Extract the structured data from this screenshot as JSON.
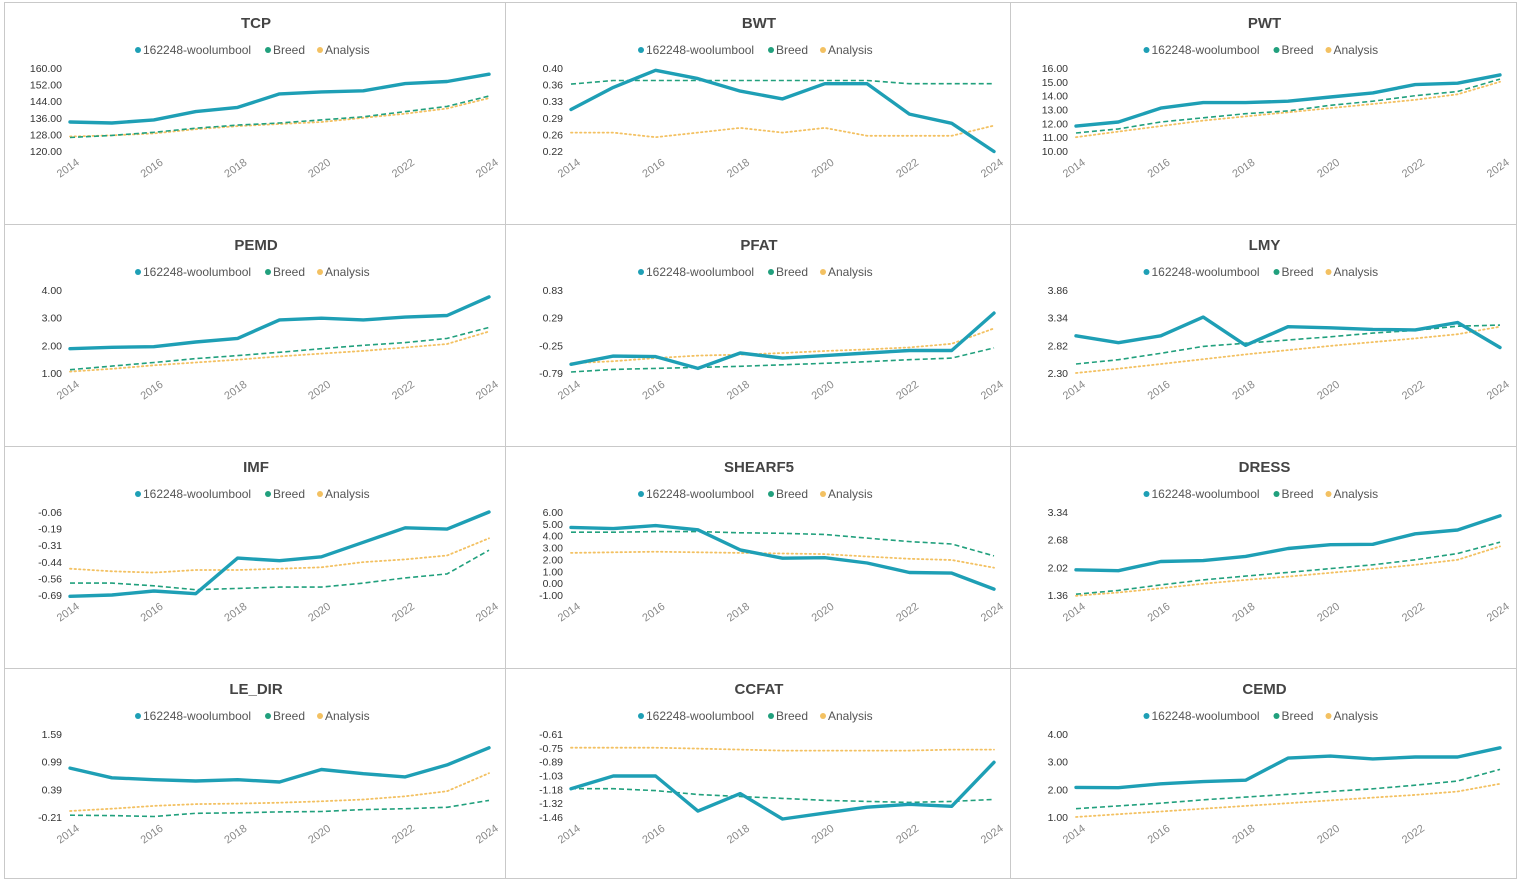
{
  "colors": {
    "animal": "#1e9fb5",
    "breed": "#21a07d",
    "analysis": "#f3c162",
    "border": "#c9c9c9"
  },
  "legend": {
    "animal": "162248-woolumbool",
    "breed": "Breed",
    "analysis": "Analysis"
  },
  "chart_data": [
    {
      "type": "line",
      "title": "TCP",
      "x": [
        2014,
        2015,
        2016,
        2017,
        2018,
        2019,
        2020,
        2021,
        2022,
        2023,
        2024
      ],
      "x_tick_labels": [
        "2014",
        "2016",
        "2018",
        "2020",
        "2022",
        "2024"
      ],
      "y_tick_labels": [
        "160.00",
        "152.00",
        "144.00",
        "136.00",
        "128.00",
        "120.00"
      ],
      "ylim": [
        120,
        160
      ],
      "series": [
        {
          "name": "162248-woolumbool",
          "style": "solid",
          "values": [
            134,
            133.5,
            135,
            139,
            141,
            147.5,
            148.5,
            149,
            152.5,
            153.5,
            157
          ]
        },
        {
          "name": "Breed",
          "style": "dashed",
          "values": [
            126.5,
            127.5,
            129,
            131,
            132.5,
            133.5,
            135,
            136.5,
            139,
            141.5,
            146.5
          ]
        },
        {
          "name": "Analysis",
          "style": "dotted",
          "values": [
            127,
            127.5,
            128.5,
            130.5,
            132,
            133,
            134,
            136,
            138,
            140.5,
            145.5
          ]
        }
      ]
    },
    {
      "type": "line",
      "title": "BWT",
      "x": [
        2014,
        2015,
        2016,
        2017,
        2018,
        2019,
        2020,
        2021,
        2022,
        2023,
        2024
      ],
      "x_tick_labels": [
        "2014",
        "2016",
        "2018",
        "2020",
        "2022",
        "2024"
      ],
      "y_tick_labels": [
        "0.40",
        "0.36",
        "0.33",
        "0.29",
        "0.26",
        "0.22"
      ],
      "ylim": [
        0.22,
        0.4
      ],
      "series": [
        {
          "name": "162248-woolumbool",
          "style": "solid",
          "values": [
            0.31,
            0.358,
            0.395,
            0.377,
            0.35,
            0.333,
            0.366,
            0.366,
            0.3,
            0.28,
            0.219
          ]
        },
        {
          "name": "Breed",
          "style": "dashed",
          "values": [
            0.365,
            0.373,
            0.373,
            0.373,
            0.373,
            0.373,
            0.373,
            0.373,
            0.366,
            0.366,
            0.366
          ]
        },
        {
          "name": "Analysis",
          "style": "dotted",
          "values": [
            0.26,
            0.26,
            0.25,
            0.26,
            0.27,
            0.26,
            0.27,
            0.253,
            0.253,
            0.253,
            0.275
          ]
        }
      ]
    },
    {
      "type": "line",
      "title": "PWT",
      "x": [
        2014,
        2015,
        2016,
        2017,
        2018,
        2019,
        2020,
        2021,
        2022,
        2023,
        2024
      ],
      "x_tick_labels": [
        "2014",
        "2016",
        "2018",
        "2020",
        "2022",
        "2024"
      ],
      "y_tick_labels": [
        "16.00",
        "15.00",
        "14.00",
        "13.00",
        "12.00",
        "11.00",
        "10.00"
      ],
      "ylim": [
        10,
        16
      ],
      "series": [
        {
          "name": "162248-woolumbool",
          "style": "solid",
          "values": [
            11.8,
            12.1,
            13.1,
            13.5,
            13.5,
            13.6,
            13.9,
            14.2,
            14.8,
            14.9,
            15.5
          ]
        },
        {
          "name": "Breed",
          "style": "dashed",
          "values": [
            11.3,
            11.6,
            12.1,
            12.4,
            12.7,
            12.9,
            13.3,
            13.6,
            14.0,
            14.3,
            15.2
          ]
        },
        {
          "name": "Analysis",
          "style": "dotted",
          "values": [
            11.0,
            11.4,
            11.8,
            12.2,
            12.5,
            12.8,
            13.1,
            13.4,
            13.7,
            14.1,
            15.0
          ]
        }
      ]
    },
    {
      "type": "line",
      "title": "PEMD",
      "x": [
        2014,
        2015,
        2016,
        2017,
        2018,
        2019,
        2020,
        2021,
        2022,
        2023,
        2024
      ],
      "x_tick_labels": [
        "2014",
        "2016",
        "2018",
        "2020",
        "2022",
        "2024"
      ],
      "y_tick_labels": [
        "4.00",
        "3.00",
        "2.00",
        "1.00"
      ],
      "ylim": [
        1,
        4
      ],
      "series": [
        {
          "name": "162248-woolumbool",
          "style": "solid",
          "values": [
            1.88,
            1.93,
            1.95,
            2.12,
            2.25,
            2.92,
            2.98,
            2.92,
            3.02,
            3.08,
            3.75
          ]
        },
        {
          "name": "Breed",
          "style": "dashed",
          "values": [
            1.12,
            1.25,
            1.38,
            1.52,
            1.63,
            1.75,
            1.88,
            2.0,
            2.1,
            2.25,
            2.65
          ]
        },
        {
          "name": "Analysis",
          "style": "dotted",
          "values": [
            1.05,
            1.15,
            1.28,
            1.38,
            1.48,
            1.6,
            1.7,
            1.8,
            1.92,
            2.05,
            2.5
          ]
        }
      ]
    },
    {
      "type": "line",
      "title": "PFAT",
      "x": [
        2014,
        2015,
        2016,
        2017,
        2018,
        2019,
        2020,
        2021,
        2022,
        2023,
        2024
      ],
      "x_tick_labels": [
        "2014",
        "2016",
        "2018",
        "2020",
        "2022",
        "2024"
      ],
      "y_tick_labels": [
        "0.83",
        "0.29",
        "-0.25",
        "-0.79"
      ],
      "ylim": [
        -0.79,
        0.83
      ],
      "series": [
        {
          "name": "162248-woolumbool",
          "style": "solid",
          "values": [
            -0.62,
            -0.46,
            -0.47,
            -0.7,
            -0.4,
            -0.5,
            -0.45,
            -0.4,
            -0.35,
            -0.35,
            0.38
          ]
        },
        {
          "name": "Breed",
          "style": "dashed",
          "values": [
            -0.77,
            -0.72,
            -0.7,
            -0.68,
            -0.66,
            -0.63,
            -0.6,
            -0.57,
            -0.53,
            -0.5,
            -0.3
          ]
        },
        {
          "name": "Analysis",
          "style": "dotted",
          "values": [
            -0.6,
            -0.56,
            -0.5,
            -0.45,
            -0.43,
            -0.4,
            -0.36,
            -0.33,
            -0.29,
            -0.22,
            0.08
          ]
        }
      ]
    },
    {
      "type": "line",
      "title": "LMY",
      "x": [
        2014,
        2015,
        2016,
        2017,
        2018,
        2019,
        2020,
        2021,
        2022,
        2023,
        2024
      ],
      "x_tick_labels": [
        "2014",
        "2016",
        "2018",
        "2020",
        "2022",
        "2024"
      ],
      "y_tick_labels": [
        "3.86",
        "3.34",
        "2.82",
        "2.30"
      ],
      "ylim": [
        2.3,
        3.86
      ],
      "series": [
        {
          "name": "162248-woolumbool",
          "style": "solid",
          "values": [
            3.0,
            2.87,
            3.0,
            3.35,
            2.82,
            3.17,
            3.15,
            3.12,
            3.11,
            3.25,
            2.78
          ]
        },
        {
          "name": "Breed",
          "style": "dashed",
          "values": [
            2.47,
            2.55,
            2.67,
            2.8,
            2.86,
            2.92,
            2.98,
            3.05,
            3.1,
            3.18,
            3.2
          ]
        },
        {
          "name": "Analysis",
          "style": "dotted",
          "values": [
            2.3,
            2.38,
            2.47,
            2.56,
            2.65,
            2.73,
            2.81,
            2.88,
            2.95,
            3.03,
            3.17
          ]
        }
      ]
    },
    {
      "type": "line",
      "title": "IMF",
      "x": [
        2014,
        2015,
        2016,
        2017,
        2018,
        2019,
        2020,
        2021,
        2022,
        2023,
        2024
      ],
      "x_tick_labels": [
        "2014",
        "2016",
        "2018",
        "2020",
        "2022",
        "2024"
      ],
      "y_tick_labels": [
        "-0.06",
        "-0.19",
        "-0.31",
        "-0.44",
        "-0.56",
        "-0.69"
      ],
      "ylim": [
        -0.69,
        -0.06
      ],
      "series": [
        {
          "name": "162248-woolumbool",
          "style": "solid",
          "values": [
            -0.7,
            -0.69,
            -0.66,
            -0.68,
            -0.41,
            -0.43,
            -0.4,
            -0.29,
            -0.18,
            -0.19,
            -0.06
          ]
        },
        {
          "name": "Breed",
          "style": "dashed",
          "values": [
            -0.6,
            -0.6,
            -0.62,
            -0.65,
            -0.64,
            -0.63,
            -0.63,
            -0.6,
            -0.56,
            -0.53,
            -0.35
          ]
        },
        {
          "name": "Analysis",
          "style": "dotted",
          "values": [
            -0.49,
            -0.51,
            -0.52,
            -0.5,
            -0.5,
            -0.49,
            -0.48,
            -0.44,
            -0.42,
            -0.39,
            -0.26
          ]
        }
      ]
    },
    {
      "type": "line",
      "title": "SHEARF5",
      "x": [
        2014,
        2015,
        2016,
        2017,
        2018,
        2019,
        2020,
        2021,
        2022,
        2023,
        2024
      ],
      "x_tick_labels": [
        "2014",
        "2016",
        "2018",
        "2020",
        "2022",
        "2024"
      ],
      "y_tick_labels": [
        "6.00",
        "5.00",
        "4.00",
        "3.00",
        "2.00",
        "1.00",
        "0.00",
        "-1.00"
      ],
      "ylim": [
        -1,
        6
      ],
      "series": [
        {
          "name": "162248-woolumbool",
          "style": "solid",
          "values": [
            4.7,
            4.6,
            4.85,
            4.5,
            2.8,
            2.1,
            2.15,
            1.7,
            0.9,
            0.85,
            -0.5
          ]
        },
        {
          "name": "Breed",
          "style": "dashed",
          "values": [
            4.3,
            4.3,
            4.35,
            4.35,
            4.25,
            4.2,
            4.1,
            3.8,
            3.5,
            3.3,
            2.3
          ]
        },
        {
          "name": "Analysis",
          "style": "dotted",
          "values": [
            2.55,
            2.6,
            2.65,
            2.6,
            2.55,
            2.5,
            2.45,
            2.25,
            2.05,
            1.95,
            1.3
          ]
        }
      ]
    },
    {
      "type": "line",
      "title": "DRESS",
      "x": [
        2014,
        2015,
        2016,
        2017,
        2018,
        2019,
        2020,
        2021,
        2022,
        2023,
        2024
      ],
      "x_tick_labels": [
        "2014",
        "2016",
        "2018",
        "2020",
        "2022",
        "2024"
      ],
      "y_tick_labels": [
        "3.34",
        "2.68",
        "2.02",
        "1.36"
      ],
      "ylim": [
        1.36,
        3.34
      ],
      "series": [
        {
          "name": "162248-woolumbool",
          "style": "solid",
          "values": [
            1.96,
            1.94,
            2.16,
            2.18,
            2.28,
            2.47,
            2.56,
            2.57,
            2.82,
            2.91,
            3.25
          ]
        },
        {
          "name": "Breed",
          "style": "dashed",
          "values": [
            1.38,
            1.47,
            1.6,
            1.72,
            1.81,
            1.9,
            1.99,
            2.08,
            2.2,
            2.35,
            2.62
          ]
        },
        {
          "name": "Analysis",
          "style": "dotted",
          "values": [
            1.34,
            1.42,
            1.52,
            1.63,
            1.72,
            1.8,
            1.89,
            1.98,
            2.08,
            2.2,
            2.52
          ]
        }
      ]
    },
    {
      "type": "line",
      "title": "LE_DIR",
      "x": [
        2014,
        2015,
        2016,
        2017,
        2018,
        2019,
        2020,
        2021,
        2022,
        2023,
        2024
      ],
      "x_tick_labels": [
        "2014",
        "2016",
        "2018",
        "2020",
        "2022",
        "2024"
      ],
      "y_tick_labels": [
        "1.59",
        "0.99",
        "0.39",
        "-0.21"
      ],
      "ylim": [
        -0.21,
        1.59
      ],
      "series": [
        {
          "name": "162248-woolumbool",
          "style": "solid",
          "values": [
            0.85,
            0.64,
            0.6,
            0.57,
            0.6,
            0.55,
            0.82,
            0.73,
            0.66,
            0.92,
            1.29
          ]
        },
        {
          "name": "Breed",
          "style": "dashed",
          "values": [
            -0.17,
            -0.18,
            -0.2,
            -0.13,
            -0.12,
            -0.1,
            -0.09,
            -0.05,
            -0.03,
            0.0,
            0.15
          ]
        },
        {
          "name": "Analysis",
          "style": "dotted",
          "values": [
            -0.08,
            -0.03,
            0.03,
            0.07,
            0.08,
            0.1,
            0.13,
            0.17,
            0.24,
            0.35,
            0.74
          ]
        }
      ]
    },
    {
      "type": "line",
      "title": "CCFAT",
      "x": [
        2014,
        2015,
        2016,
        2017,
        2018,
        2019,
        2020,
        2021,
        2022,
        2023,
        2024
      ],
      "x_tick_labels": [
        "2014",
        "2016",
        "2018",
        "2020",
        "2022",
        "2024"
      ],
      "y_tick_labels": [
        "-0.61",
        "-0.75",
        "-0.89",
        "-1.03",
        "-1.18",
        "-1.32",
        "-1.46"
      ],
      "ylim": [
        -1.46,
        -0.61
      ],
      "series": [
        {
          "name": "162248-woolumbool",
          "style": "solid",
          "values": [
            -1.17,
            -1.04,
            -1.04,
            -1.4,
            -1.22,
            -1.48,
            -1.42,
            -1.36,
            -1.33,
            -1.35,
            -0.9
          ]
        },
        {
          "name": "Breed",
          "style": "dashed",
          "values": [
            -1.17,
            -1.17,
            -1.19,
            -1.23,
            -1.25,
            -1.27,
            -1.29,
            -1.3,
            -1.31,
            -1.3,
            -1.28
          ]
        },
        {
          "name": "Analysis",
          "style": "dotted",
          "values": [
            -0.75,
            -0.75,
            -0.75,
            -0.76,
            -0.77,
            -0.78,
            -0.78,
            -0.78,
            -0.78,
            -0.77,
            -0.77
          ]
        }
      ]
    },
    {
      "type": "line",
      "title": "CEMD",
      "x": [
        2014,
        2015,
        2016,
        2017,
        2018,
        2019,
        2020,
        2021,
        2022,
        2023,
        2024
      ],
      "x_tick_labels": [
        "2014",
        "2016",
        "2018",
        "2020",
        "2022"
      ],
      "y_tick_labels": [
        "4.00",
        "3.00",
        "2.00",
        "1.00"
      ],
      "ylim": [
        1,
        4
      ],
      "series": [
        {
          "name": "162248-woolumbool",
          "style": "solid",
          "values": [
            2.07,
            2.06,
            2.2,
            2.28,
            2.33,
            3.13,
            3.2,
            3.1,
            3.17,
            3.17,
            3.5
          ]
        },
        {
          "name": "Breed",
          "style": "dashed",
          "values": [
            1.3,
            1.4,
            1.5,
            1.62,
            1.72,
            1.82,
            1.92,
            2.02,
            2.15,
            2.3,
            2.72
          ]
        },
        {
          "name": "Analysis",
          "style": "dotted",
          "values": [
            1.0,
            1.1,
            1.2,
            1.3,
            1.4,
            1.5,
            1.6,
            1.7,
            1.8,
            1.92,
            2.2
          ]
        }
      ]
    }
  ]
}
